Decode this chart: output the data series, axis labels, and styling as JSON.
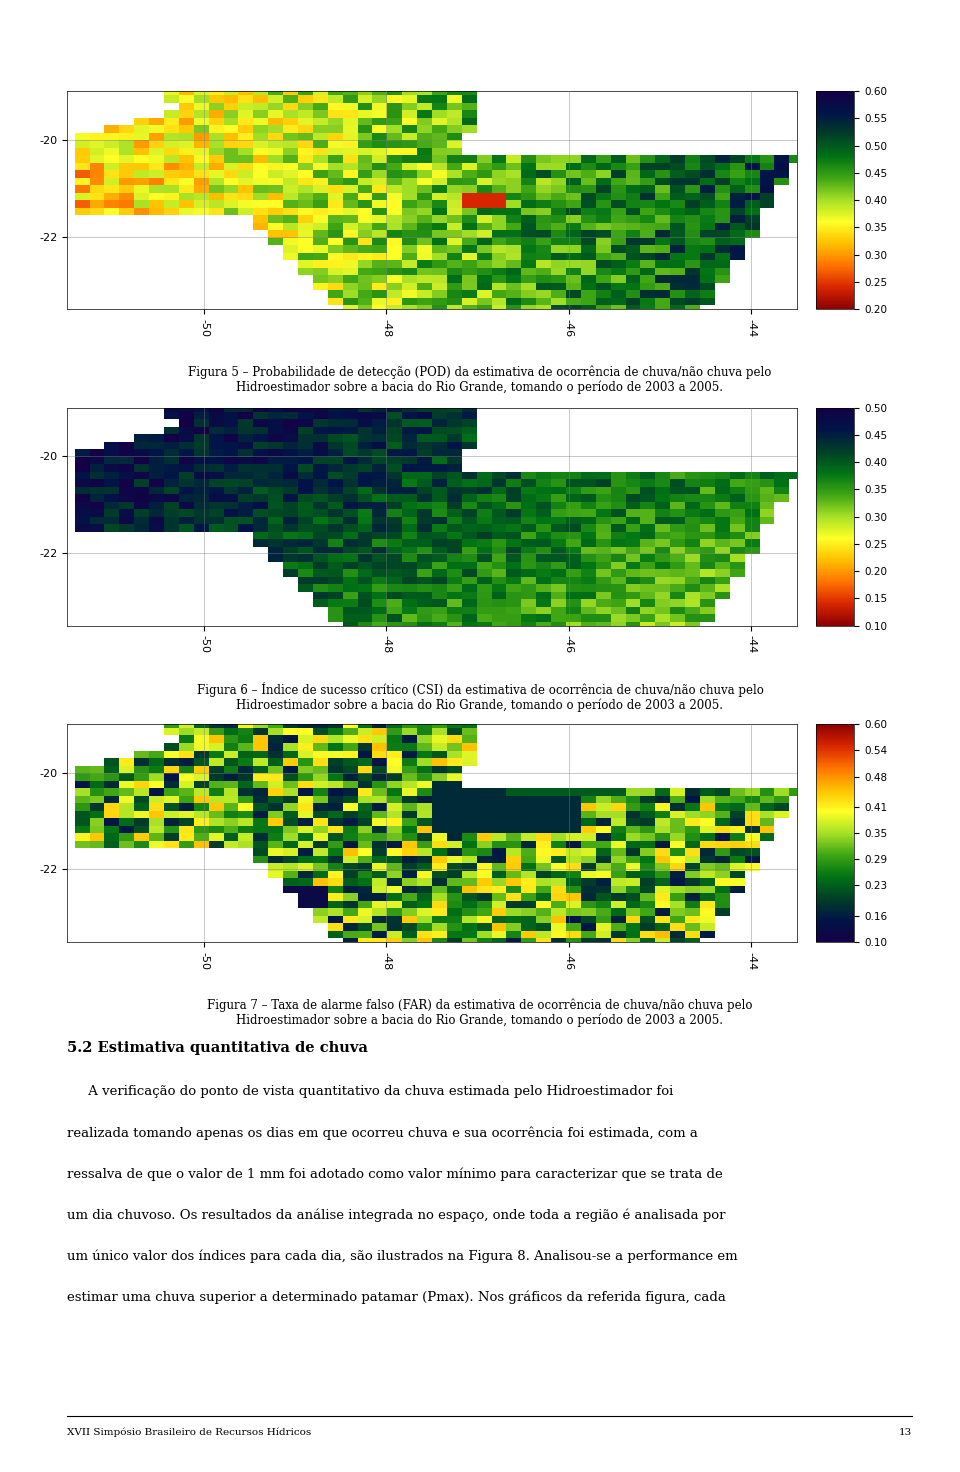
{
  "fig1": {
    "title": "Figura 5 – Probabilidade de detecção (POD) da estimativa de ocorrência de chuva/não chuva pelo\nHidroestimador sobre a bacia do Rio Grande, tomando o período de 2003 a 2005.",
    "cbar_ticks": [
      0.2,
      0.25,
      0.3,
      0.35,
      0.4,
      0.45,
      0.5,
      0.55,
      0.6
    ],
    "cbar_min": 0.2,
    "cbar_max": 0.6,
    "xlim": [
      -51.5,
      -43.5
    ],
    "ylim": [
      -23.5,
      -19.0
    ],
    "xticks": [
      -50,
      -48,
      -46,
      -44
    ],
    "yticks": [
      -22,
      -20
    ],
    "colormap": "RdYlGn_r",
    "pattern": "pod"
  },
  "fig2": {
    "title": "Figura 6 – Índice de sucesso crítico (CSI) da estimativa de ocorrência de chuva/não chuva pelo\nHidroestimador sobre a bacia do Rio Grande, tomando o período de 2003 a 2005.",
    "cbar_ticks": [
      0.1,
      0.15,
      0.2,
      0.25,
      0.3,
      0.35,
      0.4,
      0.45,
      0.5
    ],
    "cbar_min": 0.1,
    "cbar_max": 0.5,
    "xlim": [
      -51.5,
      -43.5
    ],
    "ylim": [
      -23.5,
      -19.0
    ],
    "xticks": [
      -50,
      -48,
      -46,
      -44
    ],
    "yticks": [
      -22,
      -20
    ],
    "colormap": "RdYlGn_r",
    "pattern": "csi"
  },
  "fig3": {
    "title": "Figura 7 – Taxa de alarme falso (FAR) da estimativa de ocorrência de chuva/não chuva pelo\nHidroestimador sobre a bacia do Rio Grande, tomando o período de 2003 a 2005.",
    "cbar_ticks": [
      0.1,
      0.16,
      0.23,
      0.29,
      0.35,
      0.41,
      0.48,
      0.54,
      0.6
    ],
    "cbar_min": 0.1,
    "cbar_max": 0.6,
    "xlim": [
      -51.5,
      -43.5
    ],
    "ylim": [
      -23.5,
      -19.0
    ],
    "xticks": [
      -50,
      -48,
      -46,
      -44
    ],
    "yticks": [
      -22,
      -20
    ],
    "colormap": "RdYlGn",
    "pattern": "far"
  },
  "section_title": "5.2 Estimativa quantitativa de chuva",
  "paragraph_lines": [
    "     A verificação do ponto de vista quantitativo da chuva estimada pelo Hidroestimador foi",
    "realizada tomando apenas os dias em que ocorreu chuva e sua ocorrência foi estimada, com a",
    "ressalva de que o valor de 1 mm foi adotado como valor mínimo para caracterizar que se trata de",
    "um dia chuvoso. Os resultados da análise integrada no espaço, onde toda a região é analisada por",
    "um único valor dos índices para cada dia, são ilustrados na Figura 8. Analisou-se a performance em",
    "estimar uma chuva superior a determinado patamar (Pmax). Nos gráficos da referida figura, cada"
  ],
  "footer": "XVII Simpósio Brasileiro de Recursos Hídricos",
  "page_number": "13",
  "background_color": "#ffffff",
  "text_color": "#000000",
  "map_seeds": [
    42,
    52,
    62
  ]
}
